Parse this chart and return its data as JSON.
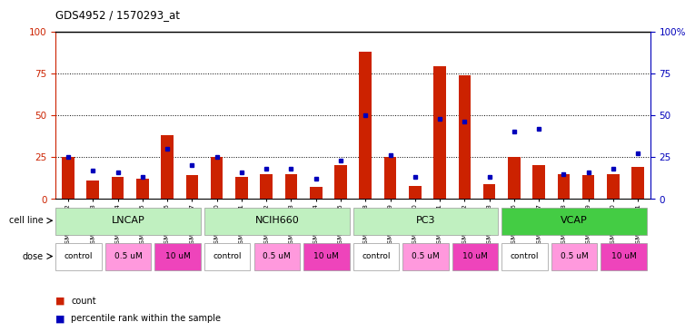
{
  "title": "GDS4952 / 1570293_at",
  "samples": [
    "GSM1359772",
    "GSM1359773",
    "GSM1359774",
    "GSM1359775",
    "GSM1359776",
    "GSM1359777",
    "GSM1359760",
    "GSM1359761",
    "GSM1359762",
    "GSM1359763",
    "GSM1359764",
    "GSM1359765",
    "GSM1359778",
    "GSM1359779",
    "GSM1359780",
    "GSM1359781",
    "GSM1359782",
    "GSM1359783",
    "GSM1359766",
    "GSM1359767",
    "GSM1359768",
    "GSM1359769",
    "GSM1359770",
    "GSM1359771"
  ],
  "counts": [
    25,
    11,
    13,
    12,
    38,
    14,
    25,
    13,
    15,
    15,
    7,
    20,
    88,
    25,
    8,
    79,
    74,
    9,
    25,
    20,
    15,
    14,
    15,
    19
  ],
  "percentiles": [
    25,
    17,
    16,
    13,
    30,
    20,
    25,
    16,
    18,
    18,
    12,
    23,
    50,
    26,
    13,
    48,
    46,
    13,
    40,
    42,
    15,
    16,
    18,
    27
  ],
  "cell_lines": [
    {
      "name": "LNCAP",
      "start": 0,
      "end": 6
    },
    {
      "name": "NCIH660",
      "start": 6,
      "end": 12
    },
    {
      "name": "PC3",
      "start": 12,
      "end": 18
    },
    {
      "name": "VCAP",
      "start": 18,
      "end": 24
    }
  ],
  "cell_line_colors": {
    "LNCAP": "#c0f0c0",
    "NCIH660": "#c0f0c0",
    "PC3": "#c0f0c0",
    "VCAP": "#44cc44"
  },
  "doses": [
    {
      "label": "control",
      "start": 0,
      "end": 2
    },
    {
      "label": "0.5 uM",
      "start": 2,
      "end": 4
    },
    {
      "label": "10 uM",
      "start": 4,
      "end": 6
    },
    {
      "label": "control",
      "start": 6,
      "end": 8
    },
    {
      "label": "0.5 uM",
      "start": 8,
      "end": 10
    },
    {
      "label": "10 uM",
      "start": 10,
      "end": 12
    },
    {
      "label": "control",
      "start": 12,
      "end": 14
    },
    {
      "label": "0.5 uM",
      "start": 14,
      "end": 16
    },
    {
      "label": "10 uM",
      "start": 16,
      "end": 18
    },
    {
      "label": "control",
      "start": 18,
      "end": 20
    },
    {
      "label": "0.5 uM",
      "start": 20,
      "end": 22
    },
    {
      "label": "10 uM",
      "start": 22,
      "end": 24
    }
  ],
  "dose_colors": {
    "control": "#ffffff",
    "0.5 uM": "#ff99dd",
    "10 uM": "#ee44bb"
  },
  "bar_color": "#cc2200",
  "percentile_color": "#0000bb",
  "ylim": [
    0,
    100
  ],
  "yticks": [
    0,
    25,
    50,
    75,
    100
  ],
  "grid_lines": [
    25,
    50,
    75
  ],
  "plot_bg": "#ffffff",
  "fig_bg": "#ffffff"
}
